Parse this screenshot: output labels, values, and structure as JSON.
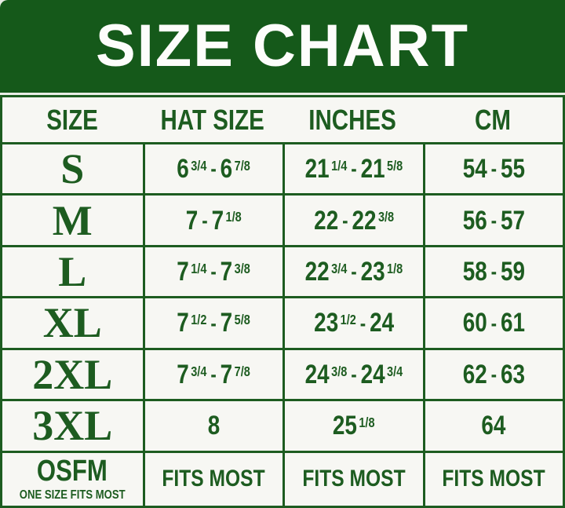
{
  "title": "SIZE CHART",
  "colors": {
    "band_green": "#15591a",
    "border_green": "#1d5c20",
    "text_green": "#1d5c20",
    "cell_bg": "#f7f7f3",
    "title_text": "#fdfdfb"
  },
  "table": {
    "columns": [
      "SIZE",
      "HAT SIZE",
      "INCHES",
      "CM"
    ],
    "rows": [
      {
        "size": "S",
        "hat_size": [
          {
            "n": "6",
            "f": "3/4"
          },
          {
            "n": "6",
            "f": "7/8"
          }
        ],
        "inches": [
          {
            "n": "21",
            "f": "1/4"
          },
          {
            "n": "21",
            "f": "5/8"
          }
        ],
        "cm": [
          {
            "n": "54"
          },
          {
            "n": "55"
          }
        ]
      },
      {
        "size": "M",
        "hat_size": [
          {
            "n": "7"
          },
          {
            "n": "7",
            "f": "1/8"
          }
        ],
        "inches": [
          {
            "n": "22"
          },
          {
            "n": "22",
            "f": "3/8"
          }
        ],
        "cm": [
          {
            "n": "56"
          },
          {
            "n": "57"
          }
        ]
      },
      {
        "size": "L",
        "hat_size": [
          {
            "n": "7",
            "f": "1/4"
          },
          {
            "n": "7",
            "f": "3/8"
          }
        ],
        "inches": [
          {
            "n": "22",
            "f": "3/4"
          },
          {
            "n": "23",
            "f": "1/8"
          }
        ],
        "cm": [
          {
            "n": "58"
          },
          {
            "n": "59"
          }
        ]
      },
      {
        "size": "XL",
        "hat_size": [
          {
            "n": "7",
            "f": "1/2"
          },
          {
            "n": "7",
            "f": "5/8"
          }
        ],
        "inches": [
          {
            "n": "23",
            "f": "1/2"
          },
          {
            "n": "24"
          }
        ],
        "cm": [
          {
            "n": "60"
          },
          {
            "n": "61"
          }
        ]
      },
      {
        "size": "2XL",
        "hat_size": [
          {
            "n": "7",
            "f": "3/4"
          },
          {
            "n": "7",
            "f": "7/8"
          }
        ],
        "inches": [
          {
            "n": "24",
            "f": "3/8"
          },
          {
            "n": "24",
            "f": "3/4"
          }
        ],
        "cm": [
          {
            "n": "62"
          },
          {
            "n": "63"
          }
        ]
      },
      {
        "size": "3XL",
        "hat_size": [
          {
            "n": "8"
          }
        ],
        "inches": [
          {
            "n": "25",
            "f": "1/8"
          }
        ],
        "cm": [
          {
            "n": "64"
          }
        ]
      },
      {
        "size": "OSFM",
        "size_note": "ONE SIZE FITS MOST",
        "size_style": "condensed",
        "hat_size": [
          {
            "n": "FITS MOST"
          }
        ],
        "inches": [
          {
            "n": "FITS MOST"
          }
        ],
        "cm": [
          {
            "n": "FITS MOST"
          }
        ]
      }
    ]
  }
}
